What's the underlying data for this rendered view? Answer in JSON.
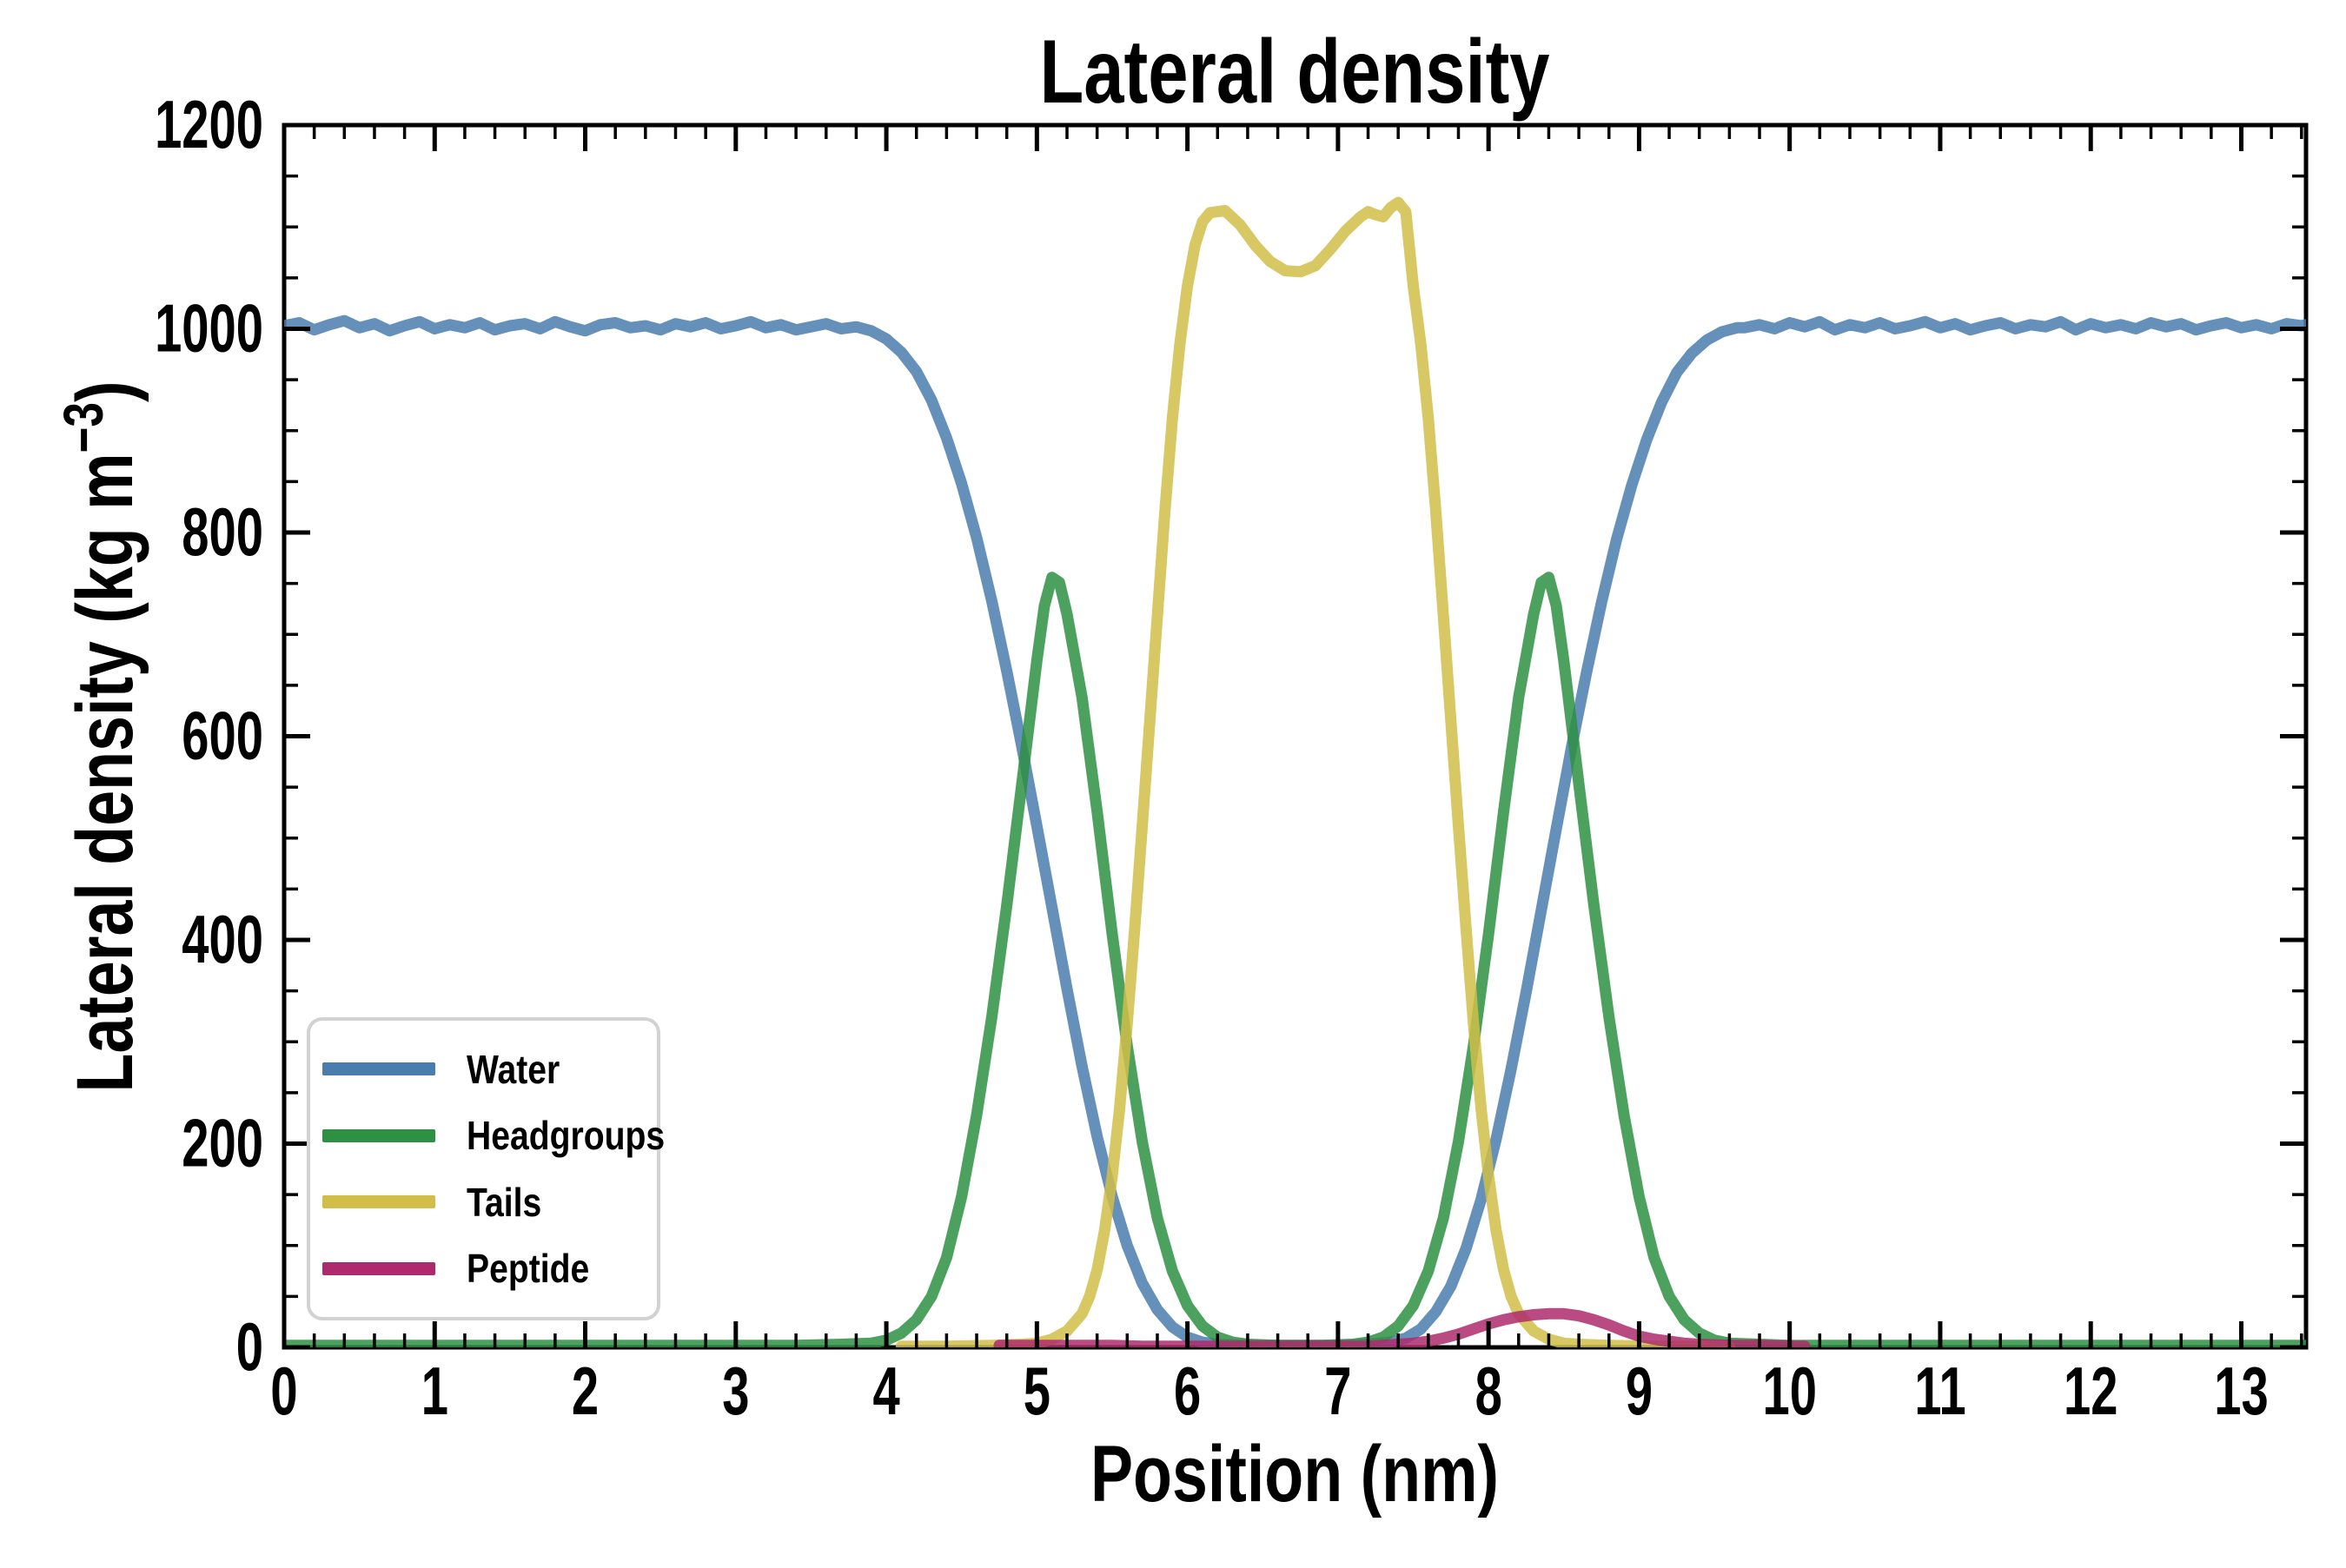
{
  "title": "Lateral density",
  "axes": {
    "xlabel": "Position (nm)",
    "ylabel": "Lateral density (kg m⁻³)",
    "ylabel_parts": {
      "pre": "Lateral density (kg m",
      "sup": "−3",
      "post": ")"
    },
    "x_tick_labels": [
      "0",
      "1",
      "2",
      "3",
      "4",
      "5",
      "6",
      "7",
      "8",
      "9",
      "10",
      "11",
      "12",
      "13"
    ],
    "y_tick_labels": [
      "0",
      "200",
      "400",
      "600",
      "800",
      "1000",
      "1200"
    ]
  },
  "legend": {
    "items": [
      {
        "label": "Water",
        "color": "#4A7DAE"
      },
      {
        "label": "Headgroups",
        "color": "#2E9043"
      },
      {
        "label": "Tails",
        "color": "#D0BE48"
      },
      {
        "label": "Peptide",
        "color": "#AE2A6C"
      }
    ]
  },
  "styling": {
    "background": "#FFFFFF",
    "axis_color": "#000000",
    "text_color": "#000000",
    "legend_border": "#D2D2D2",
    "line_width": 13,
    "line_opacity": 0.85
  },
  "chart_data": {
    "type": "line",
    "title": "Lateral density",
    "xlabel": "Position (nm)",
    "ylabel": "Lateral density (kg m-3)",
    "xlim": [
      0,
      13.43
    ],
    "ylim": [
      0,
      1200
    ],
    "x_major_ticks": [
      0,
      1,
      2,
      3,
      4,
      5,
      6,
      7,
      8,
      9,
      10,
      11,
      12,
      13
    ],
    "x_minor_interval": 0.2,
    "y_major_ticks": [
      0,
      200,
      400,
      600,
      800,
      1000,
      1200
    ],
    "y_minor_interval": 50,
    "grid": false,
    "legend_position": "lower left",
    "tick_direction": "in",
    "series": [
      {
        "name": "Water",
        "color": "#4A7DAE",
        "points": [
          [
            0,
            1003
          ],
          [
            0.1,
            1006
          ],
          [
            0.2,
            999
          ],
          [
            0.3,
            1004
          ],
          [
            0.4,
            1008
          ],
          [
            0.5,
            1001
          ],
          [
            0.6,
            1005
          ],
          [
            0.7,
            998
          ],
          [
            0.8,
            1003
          ],
          [
            0.9,
            1007
          ],
          [
            1,
            1000
          ],
          [
            1.1,
            1004
          ],
          [
            1.2,
            1001
          ],
          [
            1.3,
            1006
          ],
          [
            1.4,
            999
          ],
          [
            1.5,
            1003
          ],
          [
            1.6,
            1005
          ],
          [
            1.7,
            1000
          ],
          [
            1.8,
            1007
          ],
          [
            1.9,
            1002
          ],
          [
            2,
            998
          ],
          [
            2.1,
            1004
          ],
          [
            2.2,
            1006
          ],
          [
            2.3,
            1001
          ],
          [
            2.4,
            1003
          ],
          [
            2.5,
            999
          ],
          [
            2.6,
            1005
          ],
          [
            2.7,
            1002
          ],
          [
            2.8,
            1006
          ],
          [
            2.9,
            1000
          ],
          [
            3,
            1003
          ],
          [
            3.1,
            1007
          ],
          [
            3.2,
            1001
          ],
          [
            3.3,
            1004
          ],
          [
            3.4,
            999
          ],
          [
            3.5,
            1002
          ],
          [
            3.6,
            1005
          ],
          [
            3.7,
            1000
          ],
          [
            3.8,
            1002
          ],
          [
            3.9,
            998
          ],
          [
            4,
            990
          ],
          [
            4.1,
            977
          ],
          [
            4.2,
            958
          ],
          [
            4.3,
            930
          ],
          [
            4.4,
            893
          ],
          [
            4.5,
            848
          ],
          [
            4.6,
            795
          ],
          [
            4.7,
            733
          ],
          [
            4.8,
            664
          ],
          [
            4.9,
            590
          ],
          [
            5,
            512
          ],
          [
            5.1,
            432
          ],
          [
            5.2,
            352
          ],
          [
            5.3,
            276
          ],
          [
            5.4,
            207
          ],
          [
            5.5,
            148
          ],
          [
            5.6,
            100
          ],
          [
            5.7,
            63
          ],
          [
            5.8,
            37
          ],
          [
            5.9,
            20
          ],
          [
            6,
            10
          ],
          [
            6.1,
            5
          ],
          [
            6.2,
            3
          ],
          [
            6.4,
            2
          ],
          [
            6.6,
            2
          ],
          [
            6.8,
            2
          ],
          [
            7,
            2
          ],
          [
            7.2,
            3
          ],
          [
            7.35,
            5
          ],
          [
            7.45,
            9
          ],
          [
            7.55,
            18
          ],
          [
            7.65,
            35
          ],
          [
            7.75,
            60
          ],
          [
            7.85,
            97
          ],
          [
            7.95,
            145
          ],
          [
            8.05,
            204
          ],
          [
            8.15,
            273
          ],
          [
            8.25,
            349
          ],
          [
            8.35,
            429
          ],
          [
            8.45,
            509
          ],
          [
            8.55,
            588
          ],
          [
            8.65,
            662
          ],
          [
            8.75,
            731
          ],
          [
            8.85,
            793
          ],
          [
            8.95,
            846
          ],
          [
            9.05,
            891
          ],
          [
            9.15,
            928
          ],
          [
            9.25,
            957
          ],
          [
            9.35,
            976
          ],
          [
            9.45,
            989
          ],
          [
            9.55,
            997
          ],
          [
            9.65,
            1001
          ],
          [
            9.7,
            1001
          ],
          [
            9.8,
            1004
          ],
          [
            9.9,
            1000
          ],
          [
            10,
            1006
          ],
          [
            10.1,
            1002
          ],
          [
            10.2,
            1007
          ],
          [
            10.3,
            999
          ],
          [
            10.4,
            1004
          ],
          [
            10.5,
            1001
          ],
          [
            10.6,
            1006
          ],
          [
            10.7,
            1000
          ],
          [
            10.8,
            1003
          ],
          [
            10.9,
            1007
          ],
          [
            11,
            1001
          ],
          [
            11.1,
            1005
          ],
          [
            11.2,
            999
          ],
          [
            11.3,
            1003
          ],
          [
            11.4,
            1006
          ],
          [
            11.5,
            1000
          ],
          [
            11.6,
            1004
          ],
          [
            11.7,
            1002
          ],
          [
            11.8,
            1007
          ],
          [
            11.9,
            999
          ],
          [
            12,
            1005
          ],
          [
            12.1,
            1001
          ],
          [
            12.2,
            1004
          ],
          [
            12.3,
            1000
          ],
          [
            12.4,
            1006
          ],
          [
            12.5,
            1002
          ],
          [
            12.6,
            1005
          ],
          [
            12.7,
            999
          ],
          [
            12.8,
            1003
          ],
          [
            12.9,
            1006
          ],
          [
            13,
            1001
          ],
          [
            13.1,
            1004
          ],
          [
            13.2,
            1000
          ],
          [
            13.3,
            1005
          ],
          [
            13.4,
            1003
          ],
          [
            13.43,
            1004
          ]
        ]
      },
      {
        "name": "Headgroups",
        "color": "#2E9043",
        "points": [
          [
            0,
            2
          ],
          [
            0.5,
            2
          ],
          [
            1,
            2
          ],
          [
            1.5,
            2
          ],
          [
            2,
            2
          ],
          [
            2.5,
            2
          ],
          [
            3,
            2
          ],
          [
            3.4,
            2
          ],
          [
            3.7,
            3
          ],
          [
            3.9,
            4
          ],
          [
            4,
            7
          ],
          [
            4.1,
            14
          ],
          [
            4.2,
            27
          ],
          [
            4.3,
            50
          ],
          [
            4.4,
            88
          ],
          [
            4.5,
            148
          ],
          [
            4.6,
            228
          ],
          [
            4.7,
            324
          ],
          [
            4.8,
            434
          ],
          [
            4.9,
            553
          ],
          [
            5,
            674
          ],
          [
            5.05,
            728
          ],
          [
            5.1,
            756
          ],
          [
            5.15,
            751
          ],
          [
            5.2,
            720
          ],
          [
            5.3,
            638
          ],
          [
            5.4,
            526
          ],
          [
            5.5,
            406
          ],
          [
            5.6,
            296
          ],
          [
            5.7,
            202
          ],
          [
            5.8,
            127
          ],
          [
            5.9,
            75
          ],
          [
            6,
            41
          ],
          [
            6.1,
            21
          ],
          [
            6.2,
            10
          ],
          [
            6.3,
            5
          ],
          [
            6.4,
            3
          ],
          [
            6.6,
            2
          ],
          [
            6.9,
            2
          ],
          [
            7.1,
            3
          ],
          [
            7.2,
            5
          ],
          [
            7.3,
            10
          ],
          [
            7.4,
            21
          ],
          [
            7.5,
            41
          ],
          [
            7.6,
            75
          ],
          [
            7.7,
            127
          ],
          [
            7.8,
            202
          ],
          [
            7.9,
            296
          ],
          [
            8,
            406
          ],
          [
            8.1,
            526
          ],
          [
            8.2,
            638
          ],
          [
            8.3,
            720
          ],
          [
            8.35,
            751
          ],
          [
            8.4,
            756
          ],
          [
            8.45,
            728
          ],
          [
            8.5,
            674
          ],
          [
            8.6,
            553
          ],
          [
            8.7,
            434
          ],
          [
            8.8,
            324
          ],
          [
            8.9,
            228
          ],
          [
            9,
            148
          ],
          [
            9.1,
            88
          ],
          [
            9.2,
            50
          ],
          [
            9.3,
            27
          ],
          [
            9.4,
            14
          ],
          [
            9.5,
            7
          ],
          [
            9.6,
            4
          ],
          [
            9.8,
            3
          ],
          [
            10,
            2
          ],
          [
            10.5,
            2
          ],
          [
            11,
            2
          ],
          [
            11.5,
            2
          ],
          [
            12,
            2
          ],
          [
            12.5,
            2
          ],
          [
            13,
            2
          ],
          [
            13.43,
            2
          ]
        ]
      },
      {
        "name": "Tails",
        "color": "#D0BE48",
        "points": [
          [
            4.1,
            1
          ],
          [
            4.4,
            1
          ],
          [
            4.7,
            2
          ],
          [
            4.9,
            3
          ],
          [
            5,
            4
          ],
          [
            5.1,
            8
          ],
          [
            5.2,
            16
          ],
          [
            5.3,
            33
          ],
          [
            5.35,
            50
          ],
          [
            5.4,
            76
          ],
          [
            5.45,
            115
          ],
          [
            5.5,
            168
          ],
          [
            5.55,
            235
          ],
          [
            5.6,
            318
          ],
          [
            5.65,
            412
          ],
          [
            5.7,
            512
          ],
          [
            5.75,
            615
          ],
          [
            5.8,
            718
          ],
          [
            5.85,
            820
          ],
          [
            5.9,
            912
          ],
          [
            5.95,
            985
          ],
          [
            6,
            1042
          ],
          [
            6.05,
            1082
          ],
          [
            6.1,
            1105
          ],
          [
            6.15,
            1114
          ],
          [
            6.25,
            1116
          ],
          [
            6.35,
            1102
          ],
          [
            6.45,
            1082
          ],
          [
            6.55,
            1066
          ],
          [
            6.65,
            1057
          ],
          [
            6.75,
            1056
          ],
          [
            6.85,
            1062
          ],
          [
            6.95,
            1078
          ],
          [
            7.05,
            1096
          ],
          [
            7.15,
            1110
          ],
          [
            7.2,
            1115
          ],
          [
            7.25,
            1112
          ],
          [
            7.3,
            1110
          ],
          [
            7.35,
            1119
          ],
          [
            7.4,
            1124
          ],
          [
            7.45,
            1115
          ],
          [
            7.5,
            1042
          ],
          [
            7.55,
            985
          ],
          [
            7.6,
            912
          ],
          [
            7.65,
            820
          ],
          [
            7.7,
            718
          ],
          [
            7.75,
            615
          ],
          [
            7.8,
            512
          ],
          [
            7.85,
            412
          ],
          [
            7.9,
            318
          ],
          [
            7.95,
            235
          ],
          [
            8,
            168
          ],
          [
            8.05,
            115
          ],
          [
            8.1,
            76
          ],
          [
            8.15,
            50
          ],
          [
            8.2,
            33
          ],
          [
            8.3,
            16
          ],
          [
            8.4,
            8
          ],
          [
            8.5,
            4
          ],
          [
            8.6,
            3
          ],
          [
            8.8,
            2
          ],
          [
            9.1,
            1
          ],
          [
            9.4,
            1
          ],
          [
            9.6,
            1
          ]
        ]
      },
      {
        "name": "Peptide",
        "color": "#AE2A6C",
        "points": [
          [
            4.75,
            2
          ],
          [
            4.9,
            2
          ],
          [
            5.1,
            2
          ],
          [
            5.3,
            2
          ],
          [
            5.5,
            2
          ],
          [
            5.7,
            1
          ],
          [
            5.9,
            1
          ],
          [
            6.2,
            1
          ],
          [
            6.5,
            1
          ],
          [
            6.8,
            1
          ],
          [
            7,
            1
          ],
          [
            7.2,
            1
          ],
          [
            7.3,
            2
          ],
          [
            7.4,
            3
          ],
          [
            7.5,
            4
          ],
          [
            7.6,
            6
          ],
          [
            7.7,
            9
          ],
          [
            7.8,
            13
          ],
          [
            7.9,
            18
          ],
          [
            8,
            23
          ],
          [
            8.1,
            27
          ],
          [
            8.2,
            30
          ],
          [
            8.3,
            32
          ],
          [
            8.4,
            33
          ],
          [
            8.5,
            33
          ],
          [
            8.6,
            31
          ],
          [
            8.7,
            27
          ],
          [
            8.8,
            22
          ],
          [
            8.9,
            16
          ],
          [
            9,
            11
          ],
          [
            9.1,
            8
          ],
          [
            9.2,
            6
          ],
          [
            9.3,
            4
          ],
          [
            9.4,
            3
          ],
          [
            9.6,
            2
          ],
          [
            9.8,
            2
          ],
          [
            10,
            1
          ],
          [
            10.1,
            1
          ]
        ]
      }
    ]
  }
}
